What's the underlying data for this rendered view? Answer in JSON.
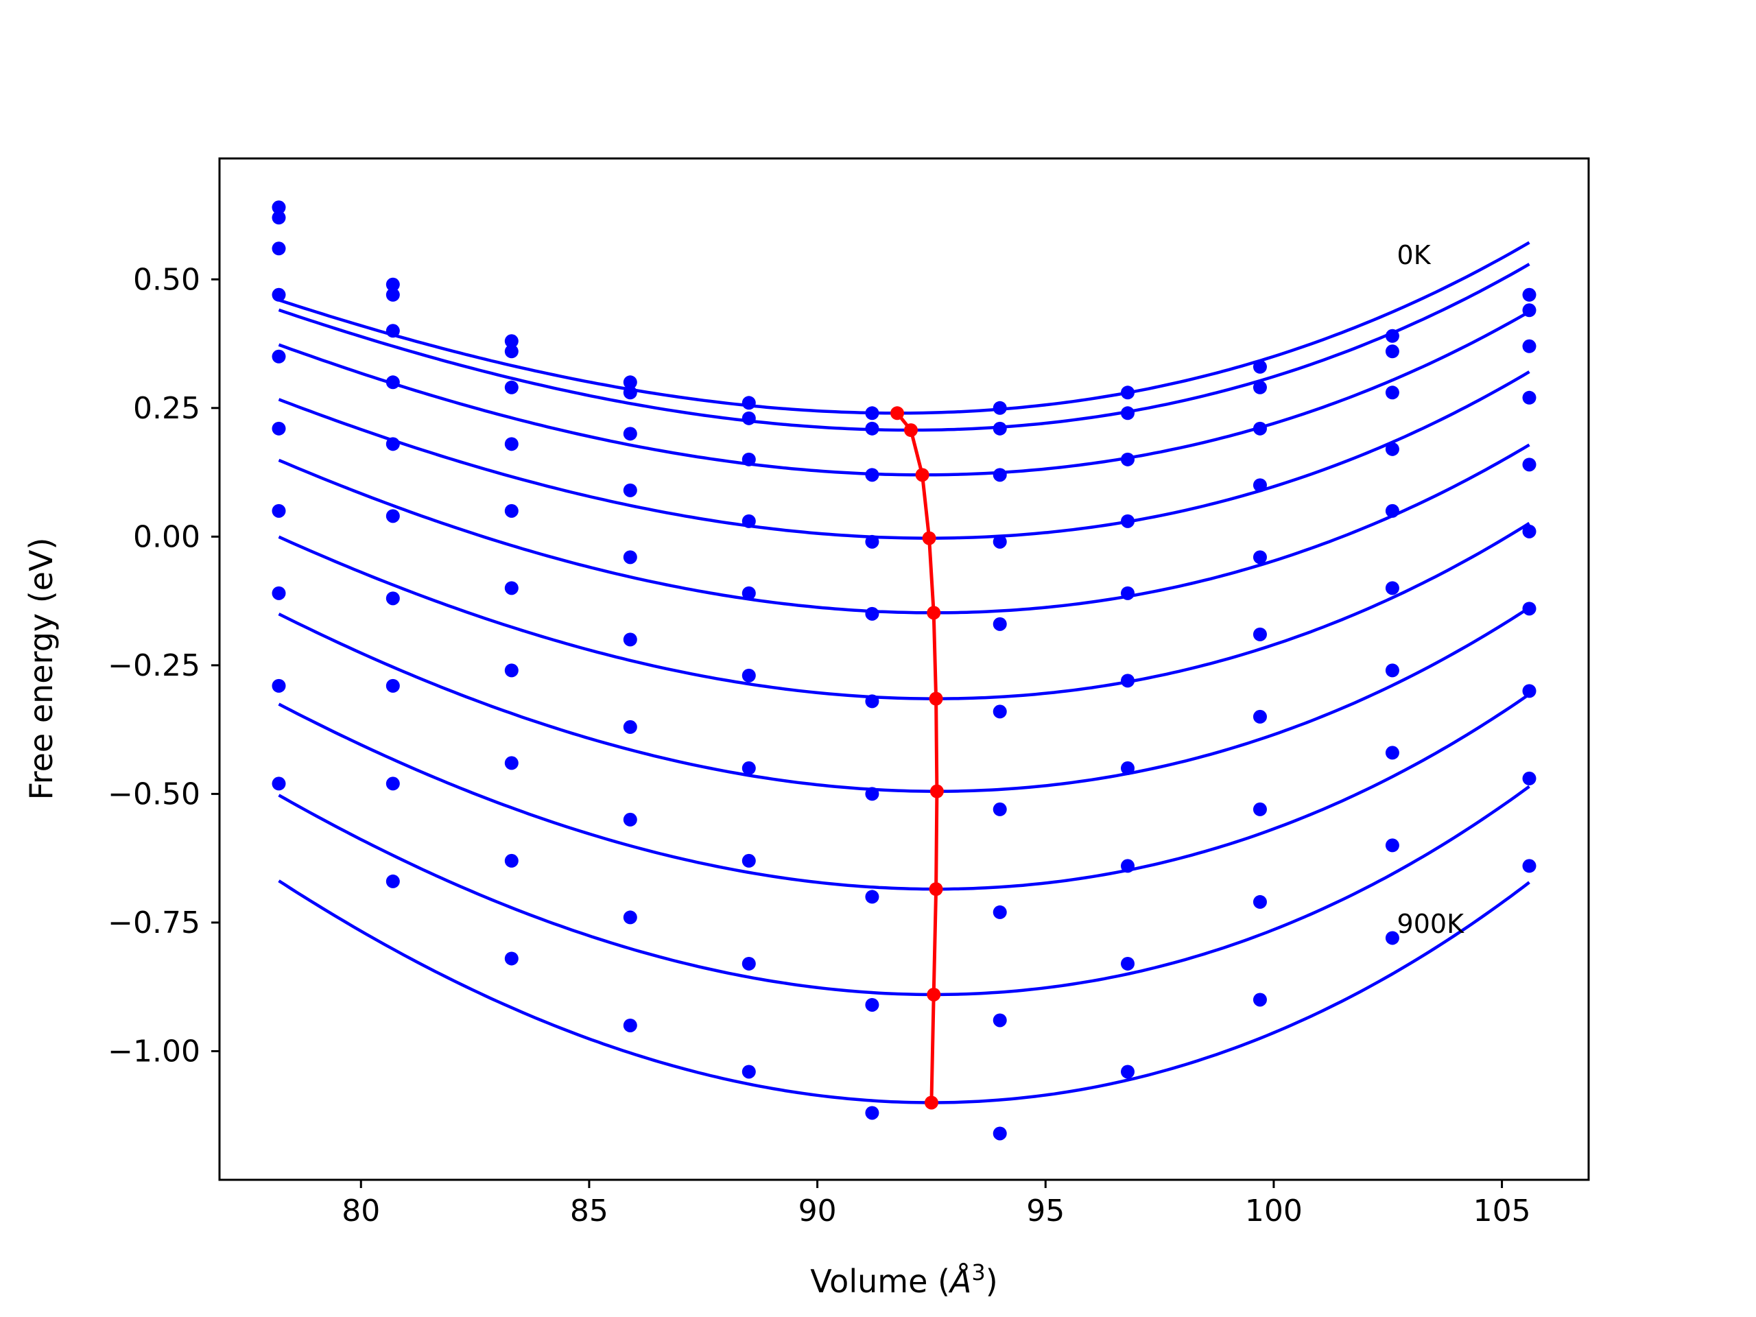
{
  "chart_data": {
    "type": "scatter",
    "xlabel": "Volume (Å3)",
    "xlabel_parts": {
      "text": "Volume (",
      "symbol": "Å",
      "superscript": "3",
      "close": ")"
    },
    "ylabel": "Free energy (eV)",
    "xlim": [
      76.9,
      106.9
    ],
    "ylim": [
      -1.25,
      0.735
    ],
    "x_ticks": [
      80,
      85,
      90,
      95,
      100,
      105
    ],
    "x_tick_labels": [
      "80",
      "85",
      "90",
      "95",
      "100",
      "105"
    ],
    "y_ticks": [
      0.5,
      0.25,
      0.0,
      -0.25,
      -0.5,
      -0.75,
      -1.0
    ],
    "y_tick_labels": [
      "0.50",
      "0.25",
      "0.00",
      "−0.25",
      "−0.50",
      "−0.75",
      "−1.00"
    ],
    "grid": false,
    "annotations": [
      {
        "text": "0K",
        "x": 102.7,
        "y": 0.53
      },
      {
        "text": "900K",
        "x": 102.7,
        "y": -0.77
      }
    ],
    "volumes": [
      78.2,
      80.7,
      83.3,
      85.9,
      88.5,
      91.2,
      94.0,
      96.8,
      99.7,
      102.6,
      105.6
    ],
    "series": [
      {
        "values": [
          0.64,
          0.49,
          0.38,
          0.3,
          0.26,
          0.24,
          0.25,
          0.28,
          0.33,
          0.39,
          0.47
        ],
        "fit": {
          "vmin": 91.75,
          "emin": 0.24,
          "a": 0.00146,
          "b": 1.94e-05
        }
      },
      {
        "values": [
          0.62,
          0.47,
          0.36,
          0.28,
          0.23,
          0.21,
          0.21,
          0.24,
          0.29,
          0.36,
          0.44
        ],
        "fit": {
          "vmin": 92.05,
          "emin": 0.207,
          "a": 0.00149,
          "b": 1.97e-05
        }
      },
      {
        "values": [
          0.56,
          0.4,
          0.29,
          0.2,
          0.15,
          0.12,
          0.12,
          0.15,
          0.21,
          0.28,
          0.37
        ],
        "fit": {
          "vmin": 92.3,
          "emin": 0.12,
          "a": 0.00154,
          "b": 1.9e-05
        }
      },
      {
        "values": [
          0.47,
          0.3,
          0.18,
          0.09,
          0.03,
          -0.01,
          -0.01,
          0.03,
          0.1,
          0.17,
          0.27
        ],
        "fit": {
          "vmin": 92.45,
          "emin": -0.003,
          "a": 0.00161,
          "b": 1.98e-05
        }
      },
      {
        "values": [
          0.35,
          0.18,
          0.05,
          -0.04,
          -0.11,
          -0.15,
          -0.17,
          -0.11,
          -0.04,
          0.05,
          0.14
        ],
        "fit": {
          "vmin": 92.55,
          "emin": -0.148,
          "a": 0.00169,
          "b": 1.74e-05
        }
      },
      {
        "values": [
          0.21,
          0.04,
          -0.1,
          -0.2,
          -0.27,
          -0.32,
          -0.34,
          -0.28,
          -0.19,
          -0.1,
          0.01
        ],
        "fit": {
          "vmin": 92.6,
          "emin": -0.315,
          "a": 0.00178,
          "b": 1.83e-05
        }
      },
      {
        "values": [
          0.05,
          -0.12,
          -0.26,
          -0.37,
          -0.45,
          -0.5,
          -0.53,
          -0.45,
          -0.35,
          -0.26,
          -0.14
        ],
        "fit": {
          "vmin": 92.62,
          "emin": -0.495,
          "a": 0.0019,
          "b": 1.68e-05
        }
      },
      {
        "values": [
          -0.11,
          -0.29,
          -0.44,
          -0.55,
          -0.63,
          -0.7,
          -0.73,
          -0.64,
          -0.53,
          -0.42,
          -0.3
        ],
        "fit": {
          "vmin": 92.6,
          "emin": -0.685,
          "a": 0.002,
          "b": 1.85e-05
        }
      },
      {
        "values": [
          -0.29,
          -0.48,
          -0.63,
          -0.74,
          -0.83,
          -0.91,
          -0.94,
          -0.83,
          -0.71,
          -0.6,
          -0.47
        ],
        "fit": {
          "vmin": 92.55,
          "emin": -0.89,
          "a": 0.00214,
          "b": 1.8e-05
        }
      },
      {
        "values": [
          -0.48,
          -0.67,
          -0.82,
          -0.95,
          -1.04,
          -1.12,
          -1.16,
          -1.04,
          -0.9,
          -0.78,
          -0.64
        ],
        "fit": {
          "vmin": 92.5,
          "emin": -1.1,
          "a": 0.00231,
          "b": 1.41e-05
        }
      }
    ],
    "minimum_curve": {
      "x": [
        91.75,
        92.05,
        92.3,
        92.45,
        92.55,
        92.6,
        92.62,
        92.6,
        92.55,
        92.5
      ],
      "y": [
        0.24,
        0.207,
        0.12,
        -0.003,
        -0.148,
        -0.315,
        -0.495,
        -0.685,
        -0.89,
        -1.1
      ]
    },
    "colors": {
      "series": "#0000ff",
      "minimum": "#ff0000",
      "axes": "#000000"
    }
  }
}
